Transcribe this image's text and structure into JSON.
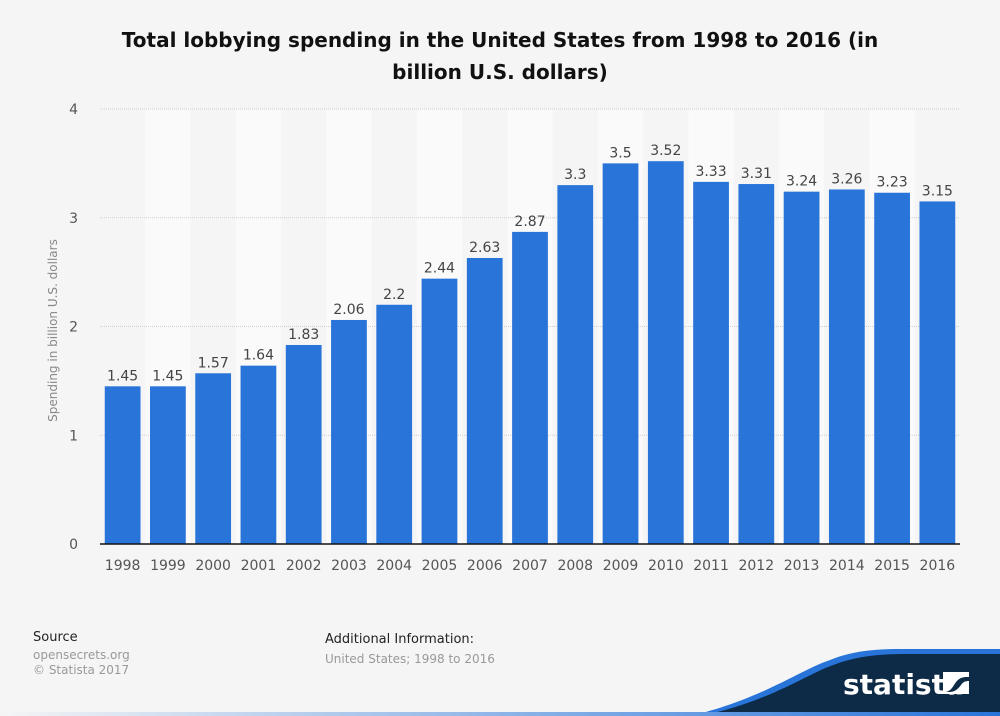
{
  "chart_data": {
    "type": "bar",
    "title": "Total lobbying spending in the United States from 1998 to 2016 (in billion U.S. dollars)",
    "xlabel": "",
    "ylabel": "Spending in billion U.S. dollars",
    "ylim": [
      0,
      4
    ],
    "yticks": [
      "0",
      "1",
      "2",
      "3",
      "4"
    ],
    "grid": true,
    "categories": [
      "1998",
      "1999",
      "2000",
      "2001",
      "2002",
      "2003",
      "2004",
      "2005",
      "2006",
      "2007",
      "2008",
      "2009",
      "2010",
      "2011",
      "2012",
      "2013",
      "2014",
      "2015",
      "2016"
    ],
    "values": [
      1.45,
      1.45,
      1.57,
      1.64,
      1.83,
      2.06,
      2.2,
      2.44,
      2.63,
      2.87,
      3.3,
      3.5,
      3.52,
      3.33,
      3.31,
      3.24,
      3.26,
      3.23,
      3.15
    ],
    "labels": [
      "1.45",
      "1.45",
      "1.57",
      "1.64",
      "1.83",
      "2.06",
      "2.2",
      "2.44",
      "2.63",
      "2.87",
      "3.3",
      "3.5",
      "3.52",
      "3.33",
      "3.31",
      "3.24",
      "3.26",
      "3.23",
      "3.15"
    ],
    "bar_color": "#2874d9"
  },
  "title_line1": "Total lobbying spending in the United States from 1998 to 2016 (in",
  "title_line2": "billion U.S. dollars)",
  "footer": {
    "source_heading": "Source",
    "source_line1": "opensecrets.org",
    "source_line2": "© Statista 2017",
    "additional_heading": "Additional Information:",
    "additional_text": "United States; 1998 to 2016"
  },
  "logo": {
    "text": "statista"
  },
  "colors": {
    "bar": "#2874d9",
    "logo_bg": "#0d2a46",
    "logo_wave": "#2874d9"
  }
}
